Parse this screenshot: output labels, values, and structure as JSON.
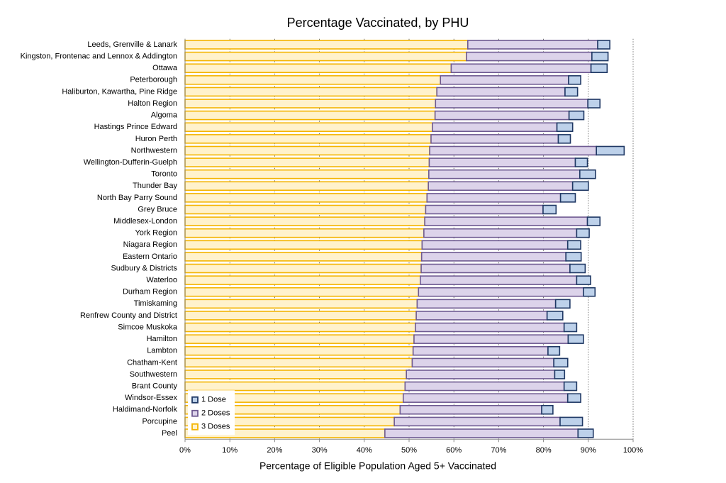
{
  "chart_data": {
    "type": "stacked-bar-horizontal",
    "title": "Percentage Vaccinated, by PHU",
    "x_label": "Percentage of Eligible Population Aged 5+ Vaccinated",
    "categories": [
      "Leeds, Grenville & Lanark",
      "Kingston, Frontenac and Lennox & Addington",
      "Ottawa",
      "Peterborough",
      "Haliburton, Kawartha, Pine Ridge",
      "Halton Region",
      "Algoma",
      "Hastings Prince Edward",
      "Huron Perth",
      "Northwestern",
      "Wellington-Dufferin-Guelph",
      "Toronto",
      "Thunder Bay",
      "North Bay Parry Sound",
      "Grey Bruce",
      "Middlesex-London",
      "York Region",
      "Niagara Region",
      "Eastern Ontario",
      "Sudbury & Districts",
      "Waterloo",
      "Durham Region",
      "Timiskaming",
      "Renfrew County and District",
      "Simcoe Muskoka",
      "Hamilton",
      "Lambton",
      "Chatham-Kent",
      "Southwestern",
      "Brant County",
      "Windsor-Essex",
      "Haldimand-Norfolk",
      "Porcupine",
      "Peel"
    ],
    "series": [
      {
        "name": "3 Doses",
        "color": "#fff2cc",
        "stroke": "#f4b400",
        "values": [
          63.1,
          62.8,
          59.4,
          57.0,
          56.2,
          55.9,
          55.8,
          55.2,
          54.9,
          54.6,
          54.5,
          54.4,
          54.3,
          54.0,
          53.7,
          53.5,
          53.3,
          52.9,
          52.8,
          52.7,
          52.5,
          52.1,
          51.8,
          51.6,
          51.4,
          51.1,
          50.9,
          50.7,
          49.4,
          49.1,
          48.7,
          48.0,
          46.7,
          44.6
        ]
      },
      {
        "name": "2 Doses",
        "color": "#dcd3ea",
        "stroke": "#6e5a91",
        "values": [
          29.0,
          28.0,
          31.2,
          28.6,
          28.6,
          34.0,
          29.9,
          27.8,
          28.4,
          37.2,
          32.6,
          33.7,
          32.2,
          29.8,
          26.2,
          36.3,
          34.1,
          32.5,
          32.2,
          33.2,
          34.9,
          36.8,
          30.9,
          29.2,
          33.2,
          34.4,
          30.1,
          31.6,
          33.1,
          35.5,
          36.7,
          31.6,
          37.0,
          43.1
        ]
      },
      {
        "name": "1 Dose",
        "color": "#bdd1ea",
        "stroke": "#1f3864",
        "values": [
          2.7,
          3.6,
          3.6,
          2.7,
          2.8,
          2.7,
          3.3,
          3.5,
          2.7,
          6.2,
          2.7,
          3.5,
          3.5,
          3.3,
          2.9,
          2.8,
          2.8,
          2.9,
          3.4,
          3.4,
          3.1,
          2.6,
          3.2,
          3.5,
          2.8,
          3.4,
          2.6,
          3.1,
          2.2,
          2.8,
          2.9,
          2.5,
          5.0,
          3.4
        ]
      }
    ],
    "xlim": [
      0,
      100
    ],
    "xticks": [
      {
        "value": 0,
        "label": "0%"
      },
      {
        "value": 10,
        "label": "10%"
      },
      {
        "value": 20,
        "label": "20%"
      },
      {
        "value": 30,
        "label": "30%"
      },
      {
        "value": 40,
        "label": "40%"
      },
      {
        "value": 50,
        "label": "50%"
      },
      {
        "value": 60,
        "label": "60%"
      },
      {
        "value": 70,
        "label": "70%"
      },
      {
        "value": 80,
        "label": "80%"
      },
      {
        "value": 90,
        "label": "90%"
      },
      {
        "value": 100,
        "label": "100%"
      }
    ],
    "grid": true,
    "legend": "lower left"
  }
}
